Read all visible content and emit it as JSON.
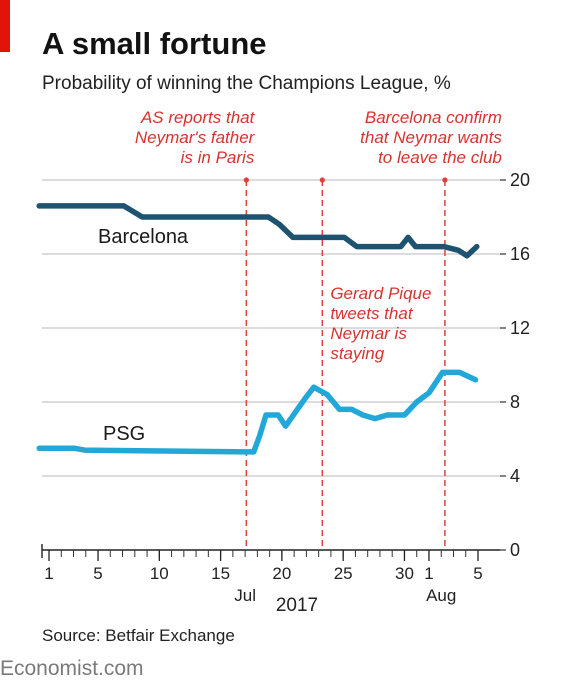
{
  "title": "A small fortune",
  "subtitle": "Probability of winning the Champions League, %",
  "source": "Source: Betfair Exchange",
  "brand": "Economist.com",
  "colors": {
    "barcelona": "#1d5370",
    "psg": "#21a8d8",
    "event_line": "#e0413a",
    "annotation_text": "#d6332f",
    "gridline": "#c7c7c7",
    "brand_bar": "#e3120b"
  },
  "chart_data": {
    "type": "line",
    "title": "A small fortune",
    "subtitle": "Probability of winning the Champions League, %",
    "x_unit": "day (July 1 – August 5, 2017)",
    "x_ticks": [
      {
        "day": 1,
        "label": "1"
      },
      {
        "day": 5,
        "label": "5"
      },
      {
        "day": 10,
        "label": "10"
      },
      {
        "day": 15,
        "label": "15"
      },
      {
        "day": 20,
        "label": "20"
      },
      {
        "day": 25,
        "label": "25"
      },
      {
        "day": 30,
        "label": "30"
      },
      {
        "day": 32,
        "label": "1"
      },
      {
        "day": 36,
        "label": "5"
      }
    ],
    "x_minor_ticks": [
      1,
      2,
      3,
      4,
      5,
      6,
      7,
      8,
      9,
      10,
      11,
      12,
      13,
      14,
      15,
      16,
      17,
      18,
      19,
      20,
      21,
      22,
      23,
      24,
      25,
      26,
      27,
      28,
      29,
      30,
      31,
      32,
      33,
      34,
      35,
      36
    ],
    "month_labels": [
      {
        "day": 17,
        "label": "Jul"
      },
      {
        "day": 33,
        "label": "Aug"
      }
    ],
    "year_label": "2017",
    "xlim": [
      0.2,
      37
    ],
    "y_ticks": [
      0,
      4,
      8,
      12,
      16,
      20
    ],
    "ylim": [
      0,
      20
    ],
    "grid": true,
    "series": [
      {
        "name": "Barcelona",
        "color_key": "barcelona",
        "points": [
          [
            0.2,
            18.6
          ],
          [
            7.1,
            18.6
          ],
          [
            8.6,
            18.0
          ],
          [
            17.1,
            18.0
          ],
          [
            18.9,
            18.0
          ],
          [
            19.8,
            17.6
          ],
          [
            20.9,
            16.9
          ],
          [
            25.1,
            16.9
          ],
          [
            26.1,
            16.4
          ],
          [
            29.7,
            16.4
          ],
          [
            30.3,
            16.9
          ],
          [
            30.9,
            16.4
          ],
          [
            32.0,
            16.4
          ],
          [
            33.2,
            16.4
          ],
          [
            34.4,
            16.2
          ],
          [
            35.1,
            15.9
          ],
          [
            35.9,
            16.4
          ]
        ]
      },
      {
        "name": "PSG",
        "color_key": "psg",
        "points": [
          [
            0.2,
            5.5
          ],
          [
            3.1,
            5.5
          ],
          [
            3.9,
            5.4
          ],
          [
            17.1,
            5.3
          ],
          [
            17.7,
            5.3
          ],
          [
            18.2,
            6.2
          ],
          [
            18.7,
            7.3
          ],
          [
            19.7,
            7.3
          ],
          [
            20.3,
            6.7
          ],
          [
            21.9,
            8.2
          ],
          [
            22.6,
            8.8
          ],
          [
            23.7,
            8.4
          ],
          [
            24.7,
            7.6
          ],
          [
            25.7,
            7.6
          ],
          [
            26.6,
            7.3
          ],
          [
            27.6,
            7.1
          ],
          [
            28.6,
            7.3
          ],
          [
            30.0,
            7.3
          ],
          [
            31.0,
            8.0
          ],
          [
            32.0,
            8.5
          ],
          [
            33.1,
            9.6
          ],
          [
            34.5,
            9.6
          ],
          [
            35.8,
            9.2
          ]
        ]
      }
    ],
    "events": [
      {
        "day": 17.1,
        "lines": [
          "AS reports that",
          "Neymar's father",
          "is in Paris"
        ]
      },
      {
        "day": 23.3,
        "lines": [
          "Gerard Pique",
          "tweets that",
          "Neymar is",
          "staying"
        ]
      },
      {
        "day": 33.3,
        "lines": [
          "Barcelona confirm",
          "that Neymar wants",
          "to leave the club"
        ]
      }
    ]
  }
}
